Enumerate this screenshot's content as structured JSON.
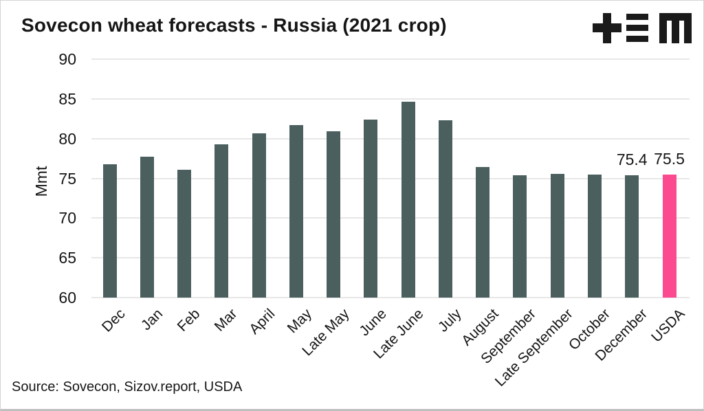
{
  "header": {
    "title": "Sovecon wheat forecasts - Russia (2021 crop)",
    "logo_name": "tem-logo",
    "logo_color": "#1a1a1a"
  },
  "chart_data": {
    "type": "bar",
    "title": "Sovecon wheat forecasts - Russia (2021 crop)",
    "xlabel": "",
    "ylabel": "Mmt",
    "ylim": [
      60,
      90
    ],
    "yticks": [
      60,
      65,
      70,
      75,
      80,
      85,
      90
    ],
    "grid": true,
    "legend": "none",
    "categories": [
      "Dec",
      "Jan",
      "Feb",
      "Mar",
      "April",
      "May",
      "Late May",
      "June",
      "Late June",
      "July",
      "August",
      "September",
      "Late September",
      "October",
      "December",
      "USDA"
    ],
    "values": [
      76.8,
      77.7,
      76.1,
      79.3,
      80.7,
      81.7,
      80.9,
      82.4,
      84.6,
      82.3,
      76.4,
      75.4,
      75.6,
      75.5,
      75.4,
      75.5
    ],
    "bar_color": "#4C5F5F",
    "highlight_color": "#FC4A90",
    "highlight_index": 15,
    "annotations": [
      {
        "index": 14,
        "category": "December",
        "text": "75.4"
      },
      {
        "index": 15,
        "category": "USDA",
        "text": "75.5"
      }
    ]
  },
  "footer": {
    "source": "Source: Sovecon, Sizov.report, USDA"
  }
}
